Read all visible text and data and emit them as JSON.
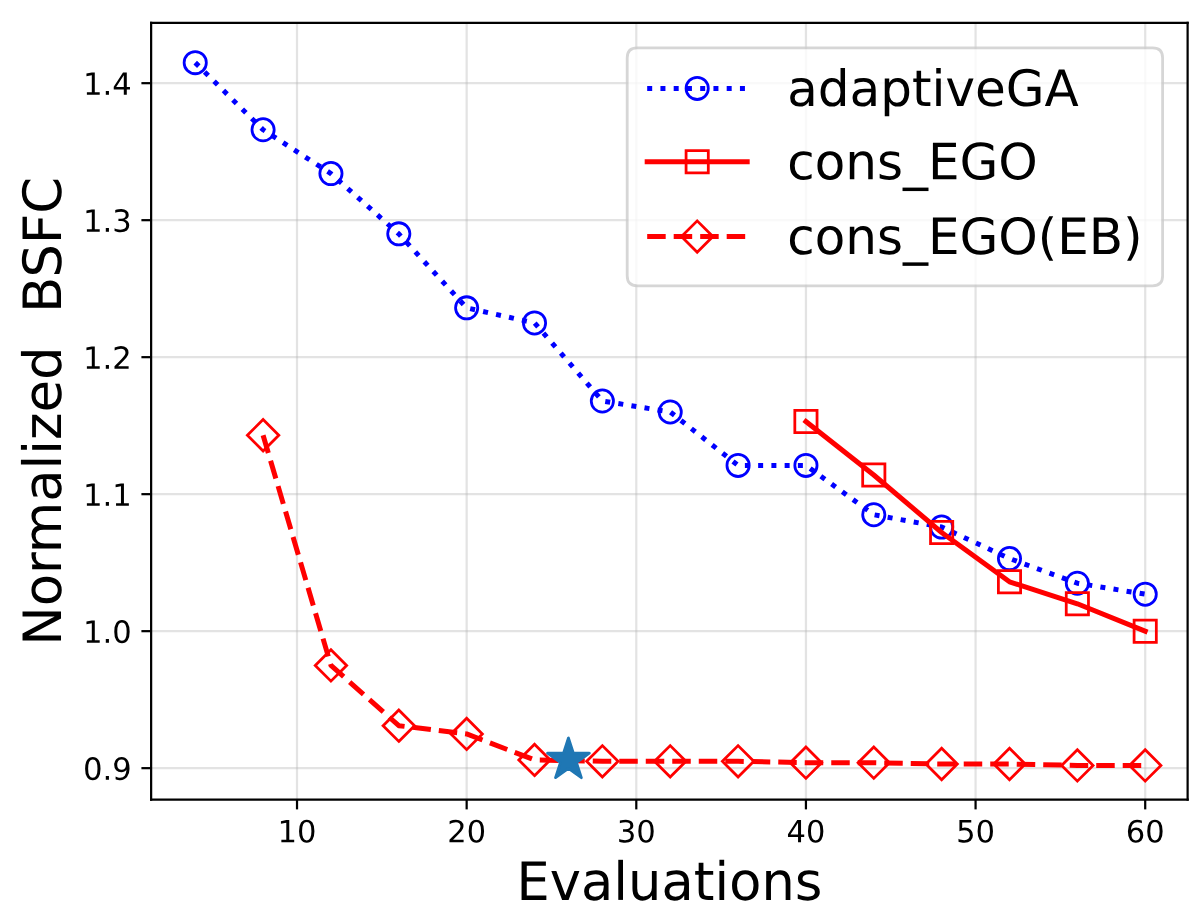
{
  "chart_data": {
    "type": "line",
    "xlabel": "Evaluations",
    "ylabel": "Normalized  BSFC",
    "xlim": [
      1.4,
      62.5
    ],
    "ylim": [
      0.877,
      1.444
    ],
    "xticks": [
      10,
      20,
      30,
      40,
      50,
      60
    ],
    "yticks": [
      0.9,
      {
        "value": 1.0,
        "label": "1.0"
      },
      1.1,
      1.2,
      1.3,
      1.4
    ],
    "grid": true,
    "legend": "top right",
    "series": [
      {
        "name": "adaptiveGA",
        "color": "#0000ff",
        "marker": "circle",
        "line_style": "dotted",
        "x": [
          4,
          8,
          12,
          16,
          20,
          24,
          28,
          32,
          36,
          40,
          44,
          48,
          52,
          56,
          60
        ],
        "values": [
          1.415,
          1.366,
          1.334,
          1.29,
          1.236,
          1.225,
          1.168,
          1.16,
          1.121,
          1.121,
          1.085,
          1.076,
          1.053,
          1.035,
          1.027
        ]
      },
      {
        "name": "cons_EGO",
        "color": "#ff0000",
        "marker": "square",
        "line_style": "solid",
        "x": [
          40,
          44,
          48,
          52,
          56,
          60
        ],
        "values": [
          1.153,
          1.114,
          1.072,
          1.036,
          1.02,
          1.0
        ]
      },
      {
        "name": "cons_EGO(EB)",
        "color": "#ff0000",
        "marker": "diamond",
        "line_style": "dashed",
        "x": [
          8,
          12,
          16,
          20,
          24,
          28,
          32,
          36,
          40,
          44,
          48,
          52,
          56,
          60
        ],
        "values": [
          1.143,
          0.975,
          0.931,
          0.925,
          0.906,
          0.905,
          0.905,
          0.905,
          0.904,
          0.904,
          0.903,
          0.903,
          0.902,
          0.902
        ]
      },
      {
        "type": "scatter",
        "color": "#1f77b4",
        "marker": "star",
        "x": [
          26
        ],
        "values": [
          0.906
        ]
      }
    ]
  }
}
